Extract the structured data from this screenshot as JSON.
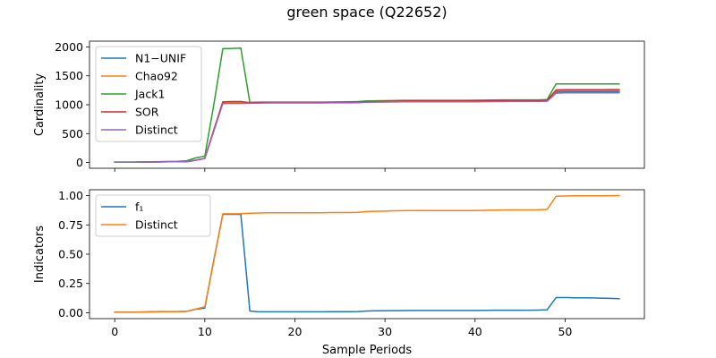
{
  "figure": {
    "title": "green space (Q22652)"
  },
  "chart_data": [
    {
      "type": "line",
      "ylabel": "Cardinality",
      "xlabel": "",
      "xlim": [
        -2.8,
        58.8
      ],
      "ylim": [
        -100,
        2100
      ],
      "xticks": [
        0,
        10,
        20,
        30,
        40,
        50
      ],
      "xticklabels": [
        "",
        "",
        "",
        "",
        "",
        ""
      ],
      "yticks": [
        0,
        500,
        1000,
        1500,
        2000
      ],
      "yticklabels": [
        "0",
        "500",
        "1000",
        "1500",
        "2000"
      ],
      "grid": false,
      "legend": "top-left",
      "x": [
        0,
        1,
        2,
        3,
        4,
        5,
        6,
        7,
        8,
        9,
        10,
        11,
        12,
        13,
        14,
        15,
        16,
        17,
        18,
        19,
        20,
        21,
        22,
        23,
        24,
        25,
        26,
        27,
        28,
        29,
        30,
        31,
        32,
        33,
        34,
        35,
        36,
        37,
        38,
        39,
        40,
        41,
        42,
        43,
        44,
        45,
        46,
        47,
        48,
        49,
        50,
        51,
        52,
        53,
        54,
        55,
        56
      ],
      "series": [
        {
          "name": "N1−UNIF",
          "color": "#1f77b4",
          "values": [
            5,
            5,
            5,
            6,
            7,
            10,
            12,
            12,
            15,
            40,
            70,
            560,
            1040,
            1040,
            1040,
            1030,
            1035,
            1038,
            1038,
            1038,
            1038,
            1038,
            1038,
            1038,
            1040,
            1040,
            1040,
            1042,
            1050,
            1052,
            1055,
            1057,
            1058,
            1060,
            1060,
            1060,
            1060,
            1060,
            1060,
            1060,
            1060,
            1062,
            1064,
            1065,
            1066,
            1066,
            1066,
            1067,
            1070,
            1220,
            1225,
            1225,
            1225,
            1225,
            1225,
            1225,
            1225
          ]
        },
        {
          "name": "Chao92",
          "color": "#ff7f0e",
          "values": [
            5,
            5,
            5,
            6,
            7,
            10,
            12,
            12,
            15,
            40,
            70,
            560,
            1040,
            1040,
            1040,
            1030,
            1035,
            1038,
            1038,
            1038,
            1038,
            1038,
            1038,
            1038,
            1040,
            1040,
            1040,
            1042,
            1050,
            1052,
            1055,
            1057,
            1058,
            1060,
            1060,
            1060,
            1060,
            1060,
            1060,
            1060,
            1060,
            1062,
            1064,
            1065,
            1066,
            1066,
            1066,
            1067,
            1070,
            1240,
            1245,
            1245,
            1245,
            1245,
            1245,
            1245,
            1245
          ]
        },
        {
          "name": "Jack1",
          "color": "#2ca02c",
          "values": [
            8,
            8,
            9,
            10,
            12,
            15,
            18,
            20,
            30,
            80,
            110,
            1000,
            1970,
            1975,
            1980,
            1040,
            1045,
            1045,
            1045,
            1045,
            1045,
            1045,
            1045,
            1045,
            1047,
            1048,
            1050,
            1055,
            1065,
            1068,
            1070,
            1072,
            1075,
            1075,
            1075,
            1075,
            1075,
            1075,
            1075,
            1075,
            1077,
            1080,
            1082,
            1083,
            1083,
            1083,
            1083,
            1084,
            1090,
            1360,
            1360,
            1360,
            1360,
            1360,
            1360,
            1360,
            1358
          ]
        },
        {
          "name": "SOR",
          "color": "#d62728",
          "values": [
            5,
            5,
            5,
            6,
            7,
            10,
            12,
            12,
            15,
            40,
            70,
            560,
            1050,
            1055,
            1055,
            1035,
            1037,
            1040,
            1040,
            1040,
            1040,
            1040,
            1040,
            1040,
            1042,
            1042,
            1042,
            1045,
            1052,
            1055,
            1058,
            1060,
            1062,
            1063,
            1063,
            1063,
            1063,
            1063,
            1063,
            1063,
            1063,
            1066,
            1068,
            1069,
            1070,
            1070,
            1070,
            1071,
            1075,
            1255,
            1260,
            1260,
            1260,
            1260,
            1260,
            1262,
            1262
          ]
        },
        {
          "name": "Distinct",
          "color": "#9467bd",
          "values": [
            5,
            5,
            5,
            6,
            7,
            10,
            12,
            12,
            15,
            40,
            70,
            540,
            1020,
            1022,
            1022,
            1025,
            1028,
            1030,
            1030,
            1030,
            1030,
            1030,
            1030,
            1030,
            1032,
            1032,
            1032,
            1035,
            1042,
            1045,
            1047,
            1049,
            1050,
            1050,
            1050,
            1050,
            1050,
            1050,
            1050,
            1050,
            1050,
            1052,
            1054,
            1055,
            1056,
            1056,
            1056,
            1057,
            1060,
            1200,
            1205,
            1205,
            1205,
            1205,
            1205,
            1205,
            1205
          ]
        }
      ]
    },
    {
      "type": "line",
      "ylabel": "Indicators",
      "xlabel": "Sample Periods",
      "xlim": [
        -2.8,
        58.8
      ],
      "ylim": [
        -0.05,
        1.05
      ],
      "xticks": [
        0,
        10,
        20,
        30,
        40,
        50
      ],
      "xticklabels": [
        "0",
        "10",
        "20",
        "30",
        "40",
        "50"
      ],
      "yticks": [
        0,
        0.25,
        0.5,
        0.75,
        1.0
      ],
      "yticklabels": [
        "0.00",
        "0.25",
        "0.50",
        "0.75",
        "1.00"
      ],
      "grid": false,
      "legend": "top-left",
      "x": [
        0,
        1,
        2,
        3,
        4,
        5,
        6,
        7,
        8,
        9,
        10,
        11,
        12,
        13,
        14,
        15,
        16,
        17,
        18,
        19,
        20,
        21,
        22,
        23,
        24,
        25,
        26,
        27,
        28,
        29,
        30,
        31,
        32,
        33,
        34,
        35,
        36,
        37,
        38,
        39,
        40,
        41,
        42,
        43,
        44,
        45,
        46,
        47,
        48,
        49,
        50,
        51,
        52,
        53,
        54,
        55,
        56
      ],
      "series": [
        {
          "name": "f₁",
          "color": "#1f77b4",
          "values": [
            0.005,
            0.005,
            0.005,
            0.006,
            0.008,
            0.01,
            0.01,
            0.01,
            0.012,
            0.03,
            0.04,
            0.45,
            0.84,
            0.84,
            0.84,
            0.015,
            0.008,
            0.008,
            0.008,
            0.008,
            0.008,
            0.008,
            0.008,
            0.008,
            0.009,
            0.009,
            0.009,
            0.01,
            0.015,
            0.017,
            0.018,
            0.018,
            0.019,
            0.02,
            0.02,
            0.02,
            0.02,
            0.02,
            0.02,
            0.02,
            0.02,
            0.021,
            0.022,
            0.022,
            0.022,
            0.022,
            0.022,
            0.023,
            0.025,
            0.13,
            0.13,
            0.128,
            0.128,
            0.127,
            0.125,
            0.123,
            0.12
          ]
        },
        {
          "name": "Distinct",
          "color": "#ff7f0e",
          "values": [
            0.004,
            0.004,
            0.004,
            0.005,
            0.006,
            0.008,
            0.009,
            0.009,
            0.012,
            0.032,
            0.05,
            0.44,
            0.845,
            0.845,
            0.846,
            0.849,
            0.851,
            0.853,
            0.853,
            0.853,
            0.853,
            0.853,
            0.853,
            0.853,
            0.855,
            0.855,
            0.855,
            0.857,
            0.864,
            0.866,
            0.868,
            0.87,
            0.871,
            0.872,
            0.872,
            0.872,
            0.872,
            0.872,
            0.872,
            0.872,
            0.872,
            0.874,
            0.876,
            0.877,
            0.878,
            0.878,
            0.878,
            0.879,
            0.882,
            0.995,
            0.997,
            0.998,
            0.998,
            0.998,
            0.998,
            0.999,
            1.0
          ]
        }
      ]
    }
  ]
}
